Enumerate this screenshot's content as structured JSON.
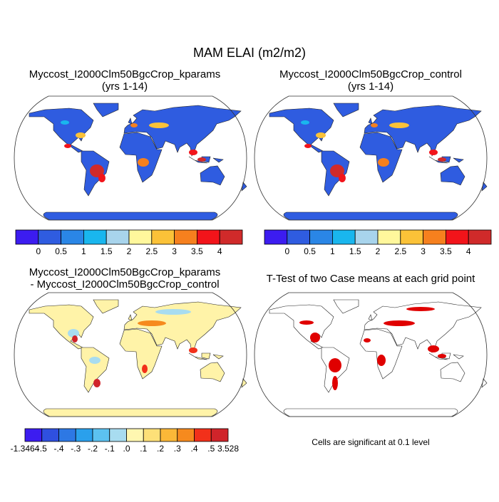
{
  "title": "MAM ELAI (m2/m2)",
  "panels": [
    {
      "title": [
        "Myccost_I2000Clm50BgcCrop_kparams",
        "(yrs 1-14)"
      ],
      "colorbar": {
        "labels": [
          "0",
          "0.5",
          "1",
          "1.5",
          "2",
          "2.5",
          "3",
          "3.5",
          "4"
        ],
        "colors": [
          "#3c1cf0",
          "#2f5ce0",
          "#2a86e6",
          "#19b6ee",
          "#a8d4ec",
          "#fff79c",
          "#fbc238",
          "#f6801e",
          "#f2141a",
          "#d02a2a"
        ]
      }
    },
    {
      "title": [
        "Myccost_I2000Clm50BgcCrop_control",
        "(yrs 1-14)"
      ],
      "colorbar": {
        "labels": [
          "0",
          "0.5",
          "1",
          "1.5",
          "2",
          "2.5",
          "3",
          "3.5",
          "4"
        ],
        "colors": [
          "#3c1cf0",
          "#2f5ce0",
          "#2a86e6",
          "#19b6ee",
          "#a8d4ec",
          "#fff79c",
          "#fbc238",
          "#f6801e",
          "#f2141a",
          "#d02a2a"
        ]
      }
    },
    {
      "title": [
        "Myccost_I2000Clm50BgcCrop_kparams",
        "- Myccost_I2000Clm50BgcCrop_control"
      ],
      "colorbar": {
        "labels": [
          "-1.3464",
          "-.5",
          "-.4",
          "-.3",
          "-.2",
          "-.1",
          ".0",
          ".1",
          ".2",
          ".3",
          ".4",
          ".5",
          "3.528"
        ],
        "colors": [
          "#3c1cf0",
          "#2f50e0",
          "#2d78e4",
          "#2aa0ec",
          "#5cc2f0",
          "#a8dcf0",
          "#fff7b0",
          "#fde078",
          "#fbb838",
          "#f68a1e",
          "#f2301a",
          "#d0242a"
        ]
      }
    },
    {
      "title": [
        "T-Test of two Case means at each grid point"
      ],
      "note": "Cells are significant at 0.1 level"
    }
  ]
}
